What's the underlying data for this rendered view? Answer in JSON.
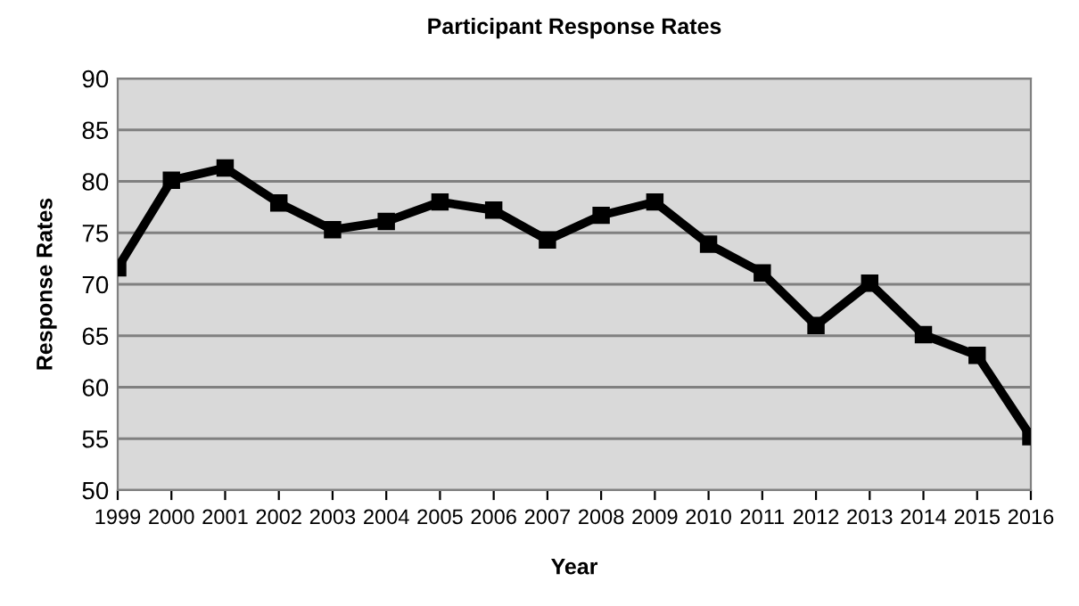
{
  "chart_data": {
    "type": "line",
    "title": "Participant Response Rates",
    "xlabel": "Year",
    "ylabel": "Response Rates",
    "x": [
      1999,
      2000,
      2001,
      2002,
      2003,
      2004,
      2005,
      2006,
      2007,
      2008,
      2009,
      2010,
      2011,
      2012,
      2013,
      2014,
      2015,
      2016
    ],
    "series": [
      {
        "color": "#000000",
        "values": [
          71.6,
          80.1,
          81.3,
          77.9,
          75.3,
          76.1,
          78,
          77.2,
          74.3,
          76.7,
          78,
          73.9,
          71.1,
          66,
          70.1,
          65.1,
          63.1,
          55.2
        ]
      }
    ],
    "xlim": [
      1999,
      2016
    ],
    "xticks": [
      1999,
      2000,
      2001,
      2002,
      2003,
      2004,
      2005,
      2006,
      2007,
      2008,
      2009,
      2010,
      2011,
      2012,
      2013,
      2014,
      2015,
      2016
    ],
    "ylim": [
      50,
      90
    ],
    "yticks": [
      50,
      55,
      60,
      65,
      70,
      75,
      80,
      85,
      90
    ],
    "grid": "y",
    "marker": "square",
    "line_style": "solid"
  }
}
